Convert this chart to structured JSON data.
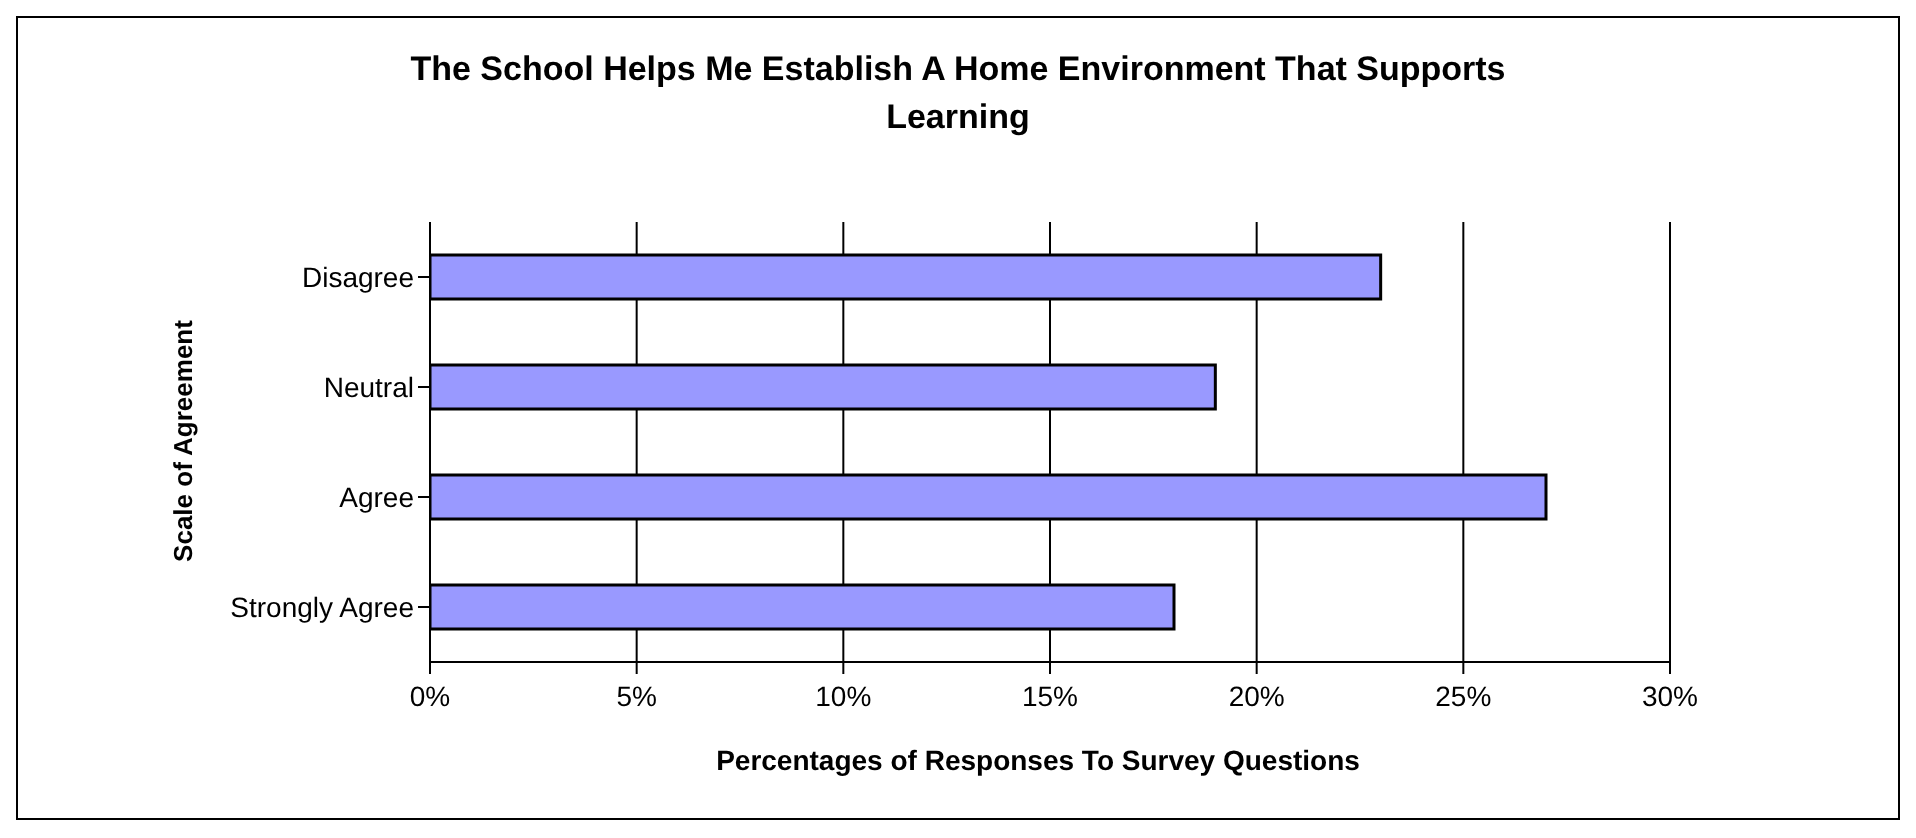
{
  "chart_data": {
    "type": "bar",
    "orientation": "horizontal",
    "title": "The School Helps Me Establish A Home Environment That Supports Learning",
    "xlabel": "Percentages of Responses To Survey Questions",
    "ylabel": "Scale of Agreement",
    "categories": [
      "Disagree",
      "Neutral",
      "Agree",
      "Strongly Agree"
    ],
    "values": [
      23,
      19,
      27,
      18
    ],
    "color": "#9999ff",
    "xlim": [
      0,
      30
    ],
    "xticks": [
      {
        "value": 0,
        "label": "0%"
      },
      {
        "value": 5,
        "label": "5%"
      },
      {
        "value": 10,
        "label": "10%"
      },
      {
        "value": 15,
        "label": "15%"
      },
      {
        "value": 20,
        "label": "20%"
      },
      {
        "value": 25,
        "label": "25%"
      },
      {
        "value": 30,
        "label": "30%"
      }
    ],
    "grid": "x",
    "legend": false
  }
}
